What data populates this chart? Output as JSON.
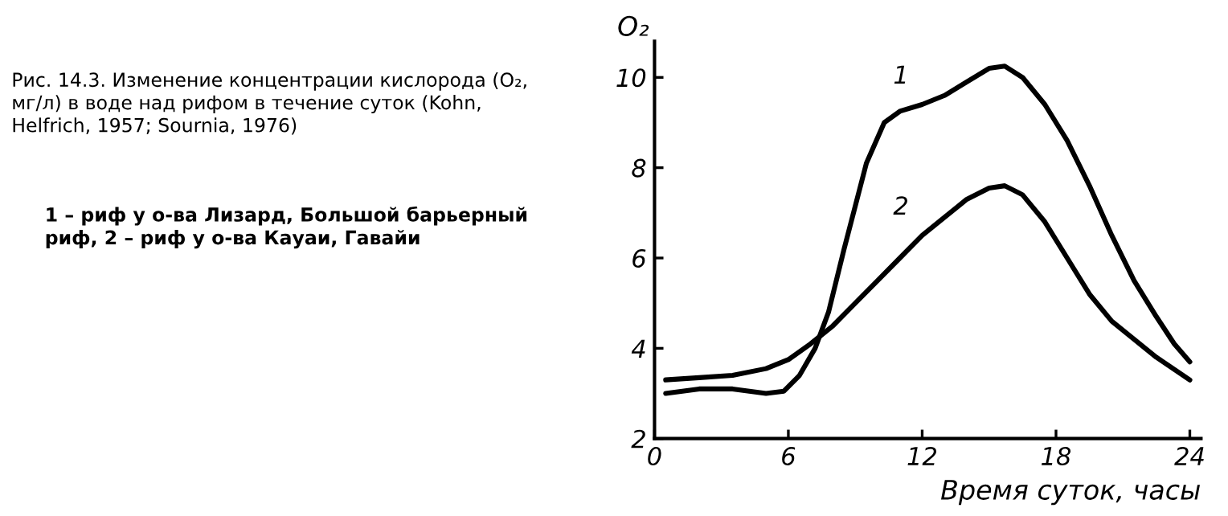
{
  "chart_data": {
    "type": "line",
    "title": "Рис. 14.3. Изменение концентрации кислорода (O₂, мг/л) в воде над рифом в течение суток (Kohn, Helfrich, 1957; Sournia, 1976)",
    "annotations": [
      "1 – риф у о-ва Лизард, Большой барьерный риф, 2 – риф у о-ва Кауаи, Гавайи"
    ],
    "xlabel": "Время суток, часы",
    "ylabel": "O₂",
    "xlim": [
      0,
      24.5
    ],
    "ylim": [
      2,
      10.8
    ],
    "xticks": [
      0,
      6,
      12,
      18,
      24
    ],
    "yticks": [
      2,
      4,
      6,
      8,
      10
    ],
    "grid": false,
    "legend": false,
    "marker": "none",
    "line_style": "solid",
    "series": [
      {
        "name": "1",
        "color": "#000000",
        "x": [
          0.5,
          2,
          3.5,
          5,
          5.8,
          6.5,
          7.2,
          7.8,
          8.5,
          9.5,
          10.3,
          11,
          12,
          13,
          14,
          15,
          15.7,
          16.5,
          17.5,
          18.5,
          19.5,
          20.5,
          21.5,
          22.5,
          23.3,
          24
        ],
        "values": [
          3.0,
          3.1,
          3.1,
          3.0,
          3.05,
          3.4,
          4.0,
          4.8,
          6.2,
          8.1,
          9.0,
          9.25,
          9.4,
          9.6,
          9.9,
          10.2,
          10.25,
          10.0,
          9.4,
          8.6,
          7.6,
          6.5,
          5.5,
          4.7,
          4.1,
          3.7
        ]
      },
      {
        "name": "2",
        "color": "#000000",
        "x": [
          0.5,
          2,
          3.5,
          5,
          6,
          7,
          8,
          9,
          10,
          11,
          12,
          13,
          14,
          15,
          15.7,
          16.5,
          17.5,
          18.5,
          19.5,
          20.5,
          21.5,
          22.5,
          24
        ],
        "values": [
          3.3,
          3.35,
          3.4,
          3.55,
          3.75,
          4.1,
          4.5,
          5.0,
          5.5,
          6.0,
          6.5,
          6.9,
          7.3,
          7.55,
          7.6,
          7.4,
          6.8,
          6.0,
          5.2,
          4.6,
          4.2,
          3.8,
          3.3
        ]
      }
    ]
  }
}
